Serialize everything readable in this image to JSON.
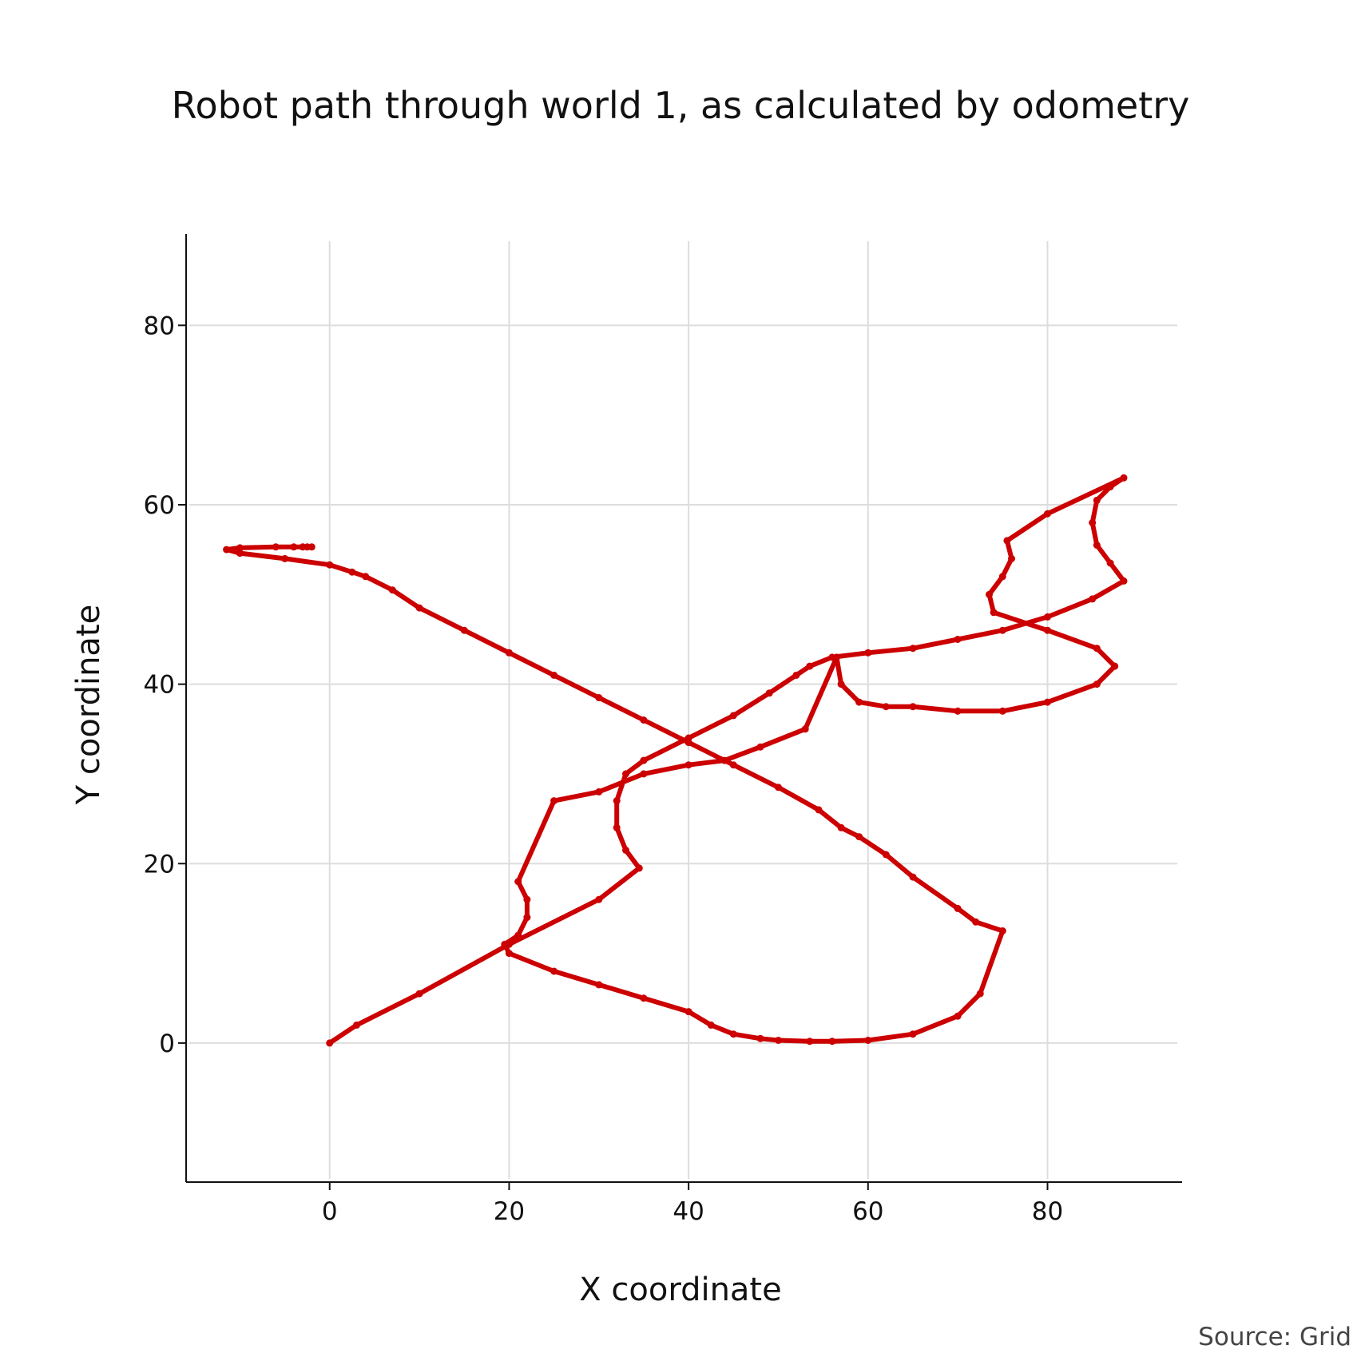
{
  "chart_data": {
    "type": "scatter",
    "title": "Robot path through world 1, as calculated by odometry",
    "xlabel": "X coordinate",
    "ylabel": "Y coordinate",
    "xlim": [
      -16,
      95
    ],
    "ylim": [
      -15.5,
      90
    ],
    "xticks": [
      0,
      20,
      40,
      60,
      80
    ],
    "yticks": [
      0,
      20,
      40,
      60,
      80
    ],
    "grid": true,
    "series": [
      {
        "mode": "lines+markers",
        "color": "#cc0000",
        "x": [
          0,
          3,
          10,
          20,
          30,
          34.5,
          33,
          32,
          32,
          33,
          35,
          40,
          45,
          49,
          52,
          53.5,
          56,
          60,
          65,
          70,
          75,
          80,
          85,
          88.5,
          87,
          85.5,
          85,
          85.5,
          87,
          88.5,
          80,
          75.5,
          76,
          75,
          73.5,
          74,
          80,
          85.5,
          87.5,
          85.5,
          80,
          75,
          70,
          65,
          62,
          59,
          57,
          56.5,
          53,
          48,
          44,
          40,
          35,
          30,
          25,
          21,
          22,
          22,
          21,
          19.5,
          20,
          25,
          30,
          35,
          40,
          42.5,
          45,
          48,
          50,
          53.5,
          56,
          60,
          65,
          70,
          72.5,
          75,
          72,
          70,
          65,
          62,
          59,
          57,
          54.5,
          50,
          45,
          40,
          35,
          30,
          25,
          20,
          15,
          10,
          7,
          4,
          2.5,
          0,
          -5,
          -10,
          -11.5,
          -10,
          -6,
          -4,
          -3,
          -2.5,
          -2
        ],
        "y": [
          0,
          2,
          5.5,
          11,
          16,
          19.5,
          21.5,
          24,
          27,
          30,
          31.5,
          34,
          36.5,
          39,
          41,
          42,
          43,
          43.5,
          44,
          45,
          46,
          47.5,
          49.5,
          51.5,
          53.5,
          55.5,
          58,
          60.5,
          62,
          63,
          59,
          56,
          54,
          52,
          50,
          48,
          46,
          44,
          42,
          40,
          38,
          37,
          37,
          37.5,
          37.5,
          38,
          40,
          43,
          35,
          33,
          31.5,
          31,
          30,
          28,
          27,
          18,
          16,
          14,
          12,
          11,
          10,
          8,
          6.5,
          5,
          3.5,
          2,
          1,
          0.5,
          0.3,
          0.2,
          0.2,
          0.3,
          1,
          3,
          5.5,
          12.5,
          13.5,
          15,
          18.5,
          21,
          23,
          24,
          26,
          28.5,
          31,
          33.5,
          36,
          38.5,
          41,
          43.5,
          46,
          48.5,
          50.5,
          52,
          52.5,
          53.3,
          54,
          54.6,
          55,
          55.2,
          55.3,
          55.3,
          55.3,
          55.3,
          55.3
        ]
      }
    ]
  },
  "source_note": "Source: Grid"
}
